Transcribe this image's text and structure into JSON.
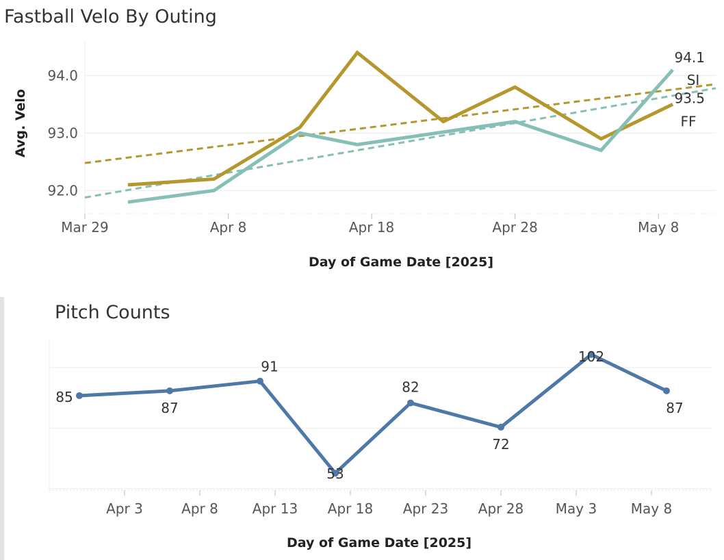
{
  "chart_data": [
    {
      "type": "line",
      "title": "Fastball Velo By Outing",
      "xlabel": "Day of Game Date [2025]",
      "ylabel": "Avg. Velo",
      "x_ticks": [
        "Mar 29",
        "Apr 8",
        "Apr 18",
        "Apr 28",
        "May 8"
      ],
      "y_ticks": [
        "92.0",
        "93.0",
        "94.0"
      ],
      "ylim": [
        91.6,
        94.6
      ],
      "xlim": [
        "2025-03-29",
        "2025-05-12"
      ],
      "trend_lines": true,
      "grid": "horizontal",
      "series": [
        {
          "name": "FF",
          "color": "#B5982D",
          "end_value_label": "93.5",
          "points": [
            {
              "x": "2025-04-01",
              "y": 92.1
            },
            {
              "x": "2025-04-07",
              "y": 92.2
            },
            {
              "x": "2025-04-13",
              "y": 93.1
            },
            {
              "x": "2025-04-17",
              "y": 94.4
            },
            {
              "x": "2025-04-23",
              "y": 93.2
            },
            {
              "x": "2025-04-28",
              "y": 93.8
            },
            {
              "x": "2025-05-04",
              "y": 92.9
            },
            {
              "x": "2025-05-09",
              "y": 93.5
            }
          ],
          "trend": {
            "start": {
              "x": "2025-03-29",
              "y": 92.48
            },
            "end": {
              "x": "2025-05-12",
              "y": 93.85
            }
          }
        },
        {
          "name": "SI",
          "color": "#86BFB6",
          "end_value_label": "94.1",
          "points": [
            {
              "x": "2025-04-01",
              "y": 91.8
            },
            {
              "x": "2025-04-07",
              "y": 92.0
            },
            {
              "x": "2025-04-13",
              "y": 93.0
            },
            {
              "x": "2025-04-17",
              "y": 92.8
            },
            {
              "x": "2025-04-28",
              "y": 93.2
            },
            {
              "x": "2025-05-04",
              "y": 92.7
            },
            {
              "x": "2025-05-09",
              "y": 94.1
            }
          ],
          "trend": {
            "start": {
              "x": "2025-03-29",
              "y": 91.88
            },
            "end": {
              "x": "2025-05-12",
              "y": 93.78
            }
          }
        }
      ]
    },
    {
      "type": "line",
      "title": "Pitch Counts",
      "xlabel": "Day of Game Date [2025]",
      "ylabel": "",
      "x_ticks": [
        "Apr 3",
        "Apr 8",
        "Apr 13",
        "Apr 18",
        "Apr 23",
        "Apr 28",
        "May 3",
        "May 8"
      ],
      "ylim": [
        46,
        109
      ],
      "xlim": [
        "2025-03-29",
        "2025-05-12"
      ],
      "grid": "horizontal",
      "series": [
        {
          "name": "",
          "color": "#4E79A7",
          "points": [
            {
              "x": "2025-03-31",
              "y": 85,
              "label": "85"
            },
            {
              "x": "2025-04-06",
              "y": 87,
              "label": "87"
            },
            {
              "x": "2025-04-12",
              "y": 91,
              "label": "91"
            },
            {
              "x": "2025-04-17",
              "y": 53,
              "label": "53"
            },
            {
              "x": "2025-04-22",
              "y": 82,
              "label": "82"
            },
            {
              "x": "2025-04-28",
              "y": 72,
              "label": "72"
            },
            {
              "x": "2025-05-04",
              "y": 102,
              "label": "102"
            },
            {
              "x": "2025-05-09",
              "y": 87,
              "label": "87"
            }
          ]
        }
      ]
    }
  ]
}
